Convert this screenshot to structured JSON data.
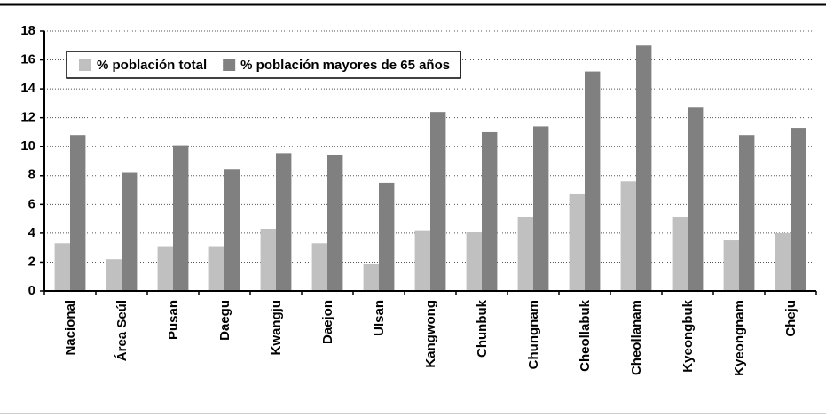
{
  "chart_data": {
    "type": "bar",
    "categories": [
      "Nacional",
      "Área Seúl",
      "Pusan",
      "Daegu",
      "Kwangju",
      "Daejon",
      "Ulsan",
      "Kangwong",
      "Chunbuk",
      "Chungnam",
      "Cheollabuk",
      "Cheollanam",
      "Kyeongbuk",
      "Kyeongnam",
      "Cheju"
    ],
    "series": [
      {
        "name": "% población total",
        "color": "#c0c0c0",
        "values": [
          3.3,
          2.2,
          3.1,
          3.1,
          4.3,
          3.3,
          1.9,
          4.2,
          4.1,
          5.1,
          6.7,
          7.6,
          5.1,
          3.5,
          4.0
        ]
      },
      {
        "name": "% población mayores de 65 años",
        "color": "#808080",
        "values": [
          10.8,
          8.2,
          10.1,
          8.4,
          9.5,
          9.4,
          7.5,
          12.4,
          11.0,
          11.4,
          15.2,
          17.0,
          12.7,
          10.8,
          11.3
        ]
      }
    ],
    "ylim": [
      0,
      18
    ],
    "yticks": [
      0,
      2,
      4,
      6,
      8,
      10,
      12,
      14,
      16,
      18
    ],
    "grid": true,
    "legend": "upper-left"
  }
}
